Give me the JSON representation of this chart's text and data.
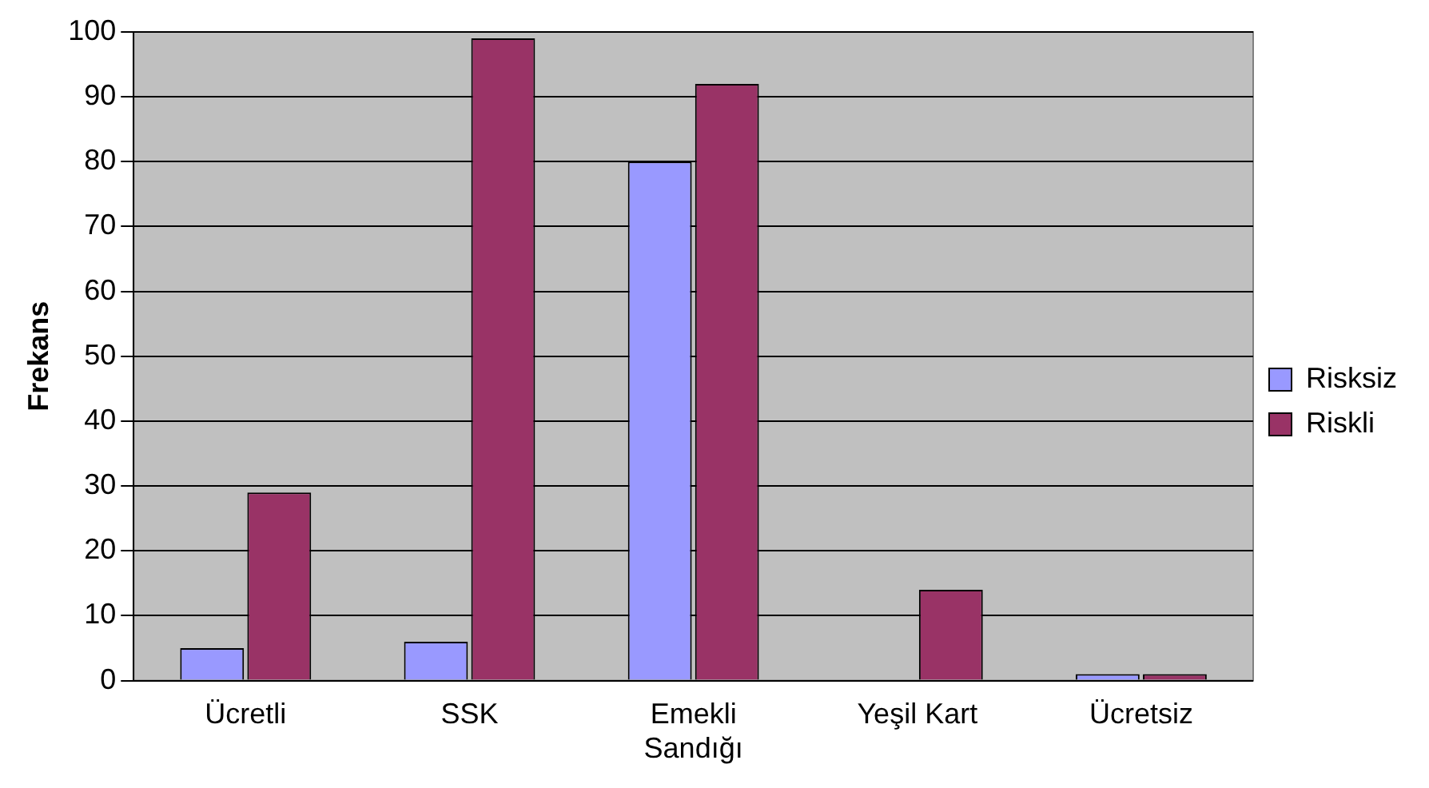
{
  "chart_data": {
    "type": "bar",
    "ylabel": "Frekans",
    "categories": [
      "Ücretli",
      "SSK",
      "Emekli Sandığı",
      "Yeşil Kart",
      "Ücretsiz"
    ],
    "series": [
      {
        "name": "Risksiz",
        "color": "#9999ff",
        "values": [
          5,
          6,
          80,
          0,
          1
        ]
      },
      {
        "name": "Riskli",
        "color": "#993366",
        "values": [
          29,
          99,
          92,
          14,
          1
        ]
      }
    ],
    "ylim": [
      0,
      100
    ],
    "yticks": [
      0,
      10,
      20,
      30,
      40,
      50,
      60,
      70,
      80,
      90,
      100
    ],
    "grid": "y",
    "legend": "right"
  }
}
